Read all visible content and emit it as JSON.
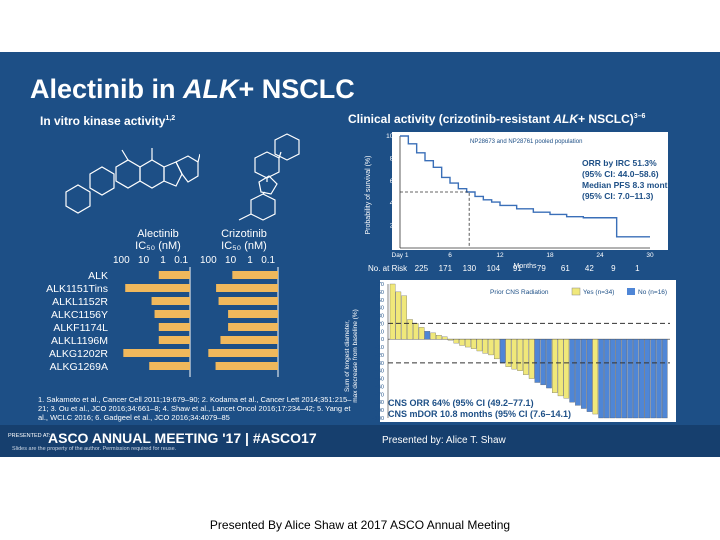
{
  "slide": {
    "title_prefix": "Alectinib in ",
    "title_italic": "ALK",
    "title_suffix": "+ NSCLC",
    "left_heading": "In vitro kinase activity",
    "left_heading_sup": "1,2",
    "right_heading_prefix": "Clinical activity (crizotinib-resistant ",
    "right_heading_italic": "ALK",
    "right_heading_suffix": "+ NSCLC)",
    "right_heading_sup": "3–6",
    "col1_head": "Alectinib",
    "col1_unit": "IC₅₀ (nM)",
    "col2_head": "Crizotinib",
    "col2_unit": "IC₅₀ (nM)",
    "tick_labels": [
      "100",
      "10",
      "1",
      "0.1"
    ],
    "mutations": [
      "ALK",
      "ALK1151Tins",
      "ALKL1152R",
      "ALKC1156Y",
      "ALKF1174L",
      "ALKL1196M",
      "ALKG1202R",
      "ALKG1269A"
    ],
    "references": "1. Sakamoto et al., Cancer Cell 2011;19:679–90; 2. Kodama et al., Cancer Lett 2014;351:215–21; 3. Ou et al., JCO 2016;34:661–8; 4. Shaw et al., Lancet Oncol 2016;17:234–42; 5. Yang et al., WCLC 2016; 6. Gadgeel et al., JCO 2016;34:4079–85"
  },
  "km": {
    "legend": "NP28673 and NP28761 pooled population",
    "y_label": "Probability of survival (%)",
    "y_ticks": [
      "100",
      "80",
      "60",
      "40",
      "20",
      "0"
    ],
    "x_ticks": [
      "Day 1",
      "6",
      "12",
      "18",
      "24",
      "30"
    ],
    "x_label": "Months",
    "orr": "ORR by IRC 51.3%",
    "orr_ci": "(95% CI: 44.0–58.6)",
    "pfs": "Median PFS 8.3 months",
    "pfs_ci": "(95% CI: 7.0–11.3)",
    "risk_label": "No. at Risk",
    "risk": [
      "225",
      "171",
      "130",
      "104",
      "91",
      "79",
      "61",
      "42",
      "9",
      "1"
    ]
  },
  "waterfall": {
    "y_label_1": "Sum of longest diameter,",
    "y_label_2": "max decrease from baseline (%)",
    "y_ticks": [
      "70",
      "60",
      "50",
      "40",
      "30",
      "20",
      "10",
      "0",
      "−10",
      "−20",
      "−30",
      "−40",
      "−50",
      "−60",
      "−70",
      "−80",
      "−90",
      "−100"
    ],
    "legend_title": "Prior CNS Radiation",
    "legend_yes": "Yes (n=34)",
    "legend_no": "No (n=16)",
    "orr": "CNS ORR 64% (95% CI (49.2–77.1)",
    "dor": "CNS mDOR 10.8 months (95% CI (7.6–14.1)"
  },
  "footer": {
    "presented_at": "PRESENTED AT:",
    "meeting": "ASCO ANNUAL MEETING '17  |  #ASCO17",
    "disclaimer": "Slides are the property of the author. Permission required for reuse.",
    "presented_by": "Presented by: Alice T. Shaw"
  },
  "caption": "Presented By Alice Shaw at 2017 ASCO Annual Meeting",
  "chart_data": [
    {
      "type": "bar",
      "categories": [
        "ALK",
        "ALK1151Tins",
        "ALKL1152R",
        "ALKC1156Y",
        "ALKF1174L",
        "ALKL1196M",
        "ALKG1202R",
        "ALKG1269A"
      ],
      "series": [
        {
          "name": "Alectinib",
          "values": [
            2,
            50,
            4,
            3,
            2,
            2,
            60,
            5
          ]
        },
        {
          "name": "Crizotinib",
          "values": [
            8,
            38,
            30,
            12,
            12,
            25,
            80,
            40
          ]
        }
      ],
      "xlabel": "IC₅₀ (nM)"
    },
    {
      "type": "line",
      "x": [
        0,
        1,
        2,
        3,
        4,
        5,
        6,
        7,
        8,
        9,
        10,
        11,
        12,
        14,
        16,
        18,
        20,
        22,
        24,
        26,
        28,
        30
      ],
      "values": [
        100,
        93,
        85,
        78,
        72,
        63,
        58,
        53,
        50,
        46,
        43,
        41,
        38,
        35,
        32,
        30,
        28,
        27,
        27,
        10,
        10,
        10
      ],
      "xlabel": "Months",
      "ylabel": "Probability of survival (%)",
      "xlim": [
        0,
        30
      ],
      "ylim": [
        0,
        100
      ]
    },
    {
      "type": "bar",
      "values": [
        70,
        60,
        55,
        25,
        20,
        15,
        10,
        8,
        5,
        3,
        0,
        -5,
        -8,
        -10,
        -12,
        -15,
        -18,
        -20,
        -25,
        -30,
        -35,
        -38,
        -40,
        -45,
        -50,
        -55,
        -58,
        -62,
        -68,
        -72,
        -75,
        -80,
        -84,
        -88,
        -92,
        -95,
        -100,
        -100,
        -100,
        -100,
        -100,
        -100,
        -100,
        -100,
        -100,
        -100,
        -100,
        -100
      ],
      "colors": [
        "#f0e87a",
        "#f0e87a",
        "#f0e87a",
        "#f0e87a",
        "#f0e87a",
        "#f0e87a",
        "#4f86d6",
        "#f0e87a",
        "#f0e87a",
        "#f0e87a",
        "#f0e87a",
        "#f0e87a",
        "#f0e87a",
        "#f0e87a",
        "#f0e87a",
        "#f0e87a",
        "#f0e87a",
        "#f0e87a",
        "#f0e87a",
        "#4f86d6",
        "#f0e87a",
        "#f0e87a",
        "#f0e87a",
        "#f0e87a",
        "#f0e87a",
        "#4f86d6",
        "#4f86d6",
        "#4f86d6",
        "#f0e87a",
        "#f0e87a",
        "#f0e87a",
        "#4f86d6",
        "#4f86d6",
        "#4f86d6",
        "#4f86d6",
        "#f0e87a",
        "#4f86d6",
        "#4f86d6",
        "#4f86d6",
        "#4f86d6",
        "#4f86d6",
        "#4f86d6",
        "#4f86d6",
        "#4f86d6",
        "#4f86d6",
        "#4f86d6",
        "#4f86d6",
        "#4f86d6"
      ],
      "ylim": [
        -100,
        70
      ]
    }
  ]
}
